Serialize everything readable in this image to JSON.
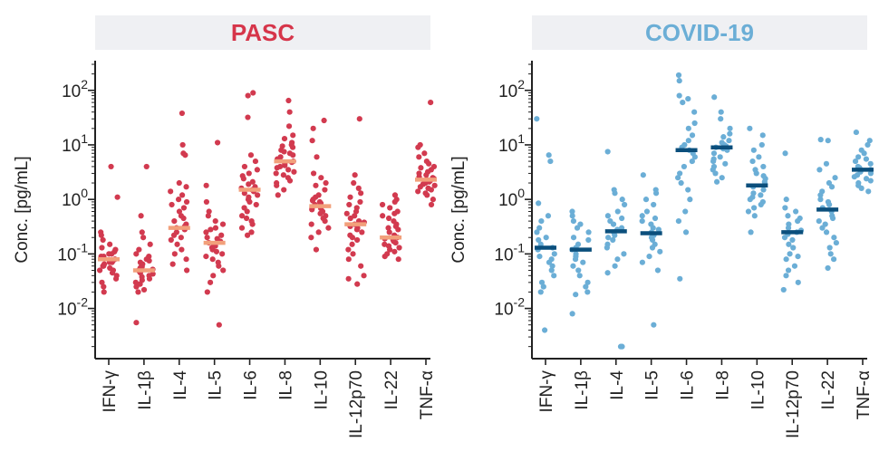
{
  "chart_data": [
    {
      "type": "scatter",
      "title": "PASC",
      "title_color": "#D6354A",
      "point_color": "#D23A4F",
      "median_color": "#F2A07B",
      "ylabel": "Conc.  [pg/mL]",
      "yscale": "log",
      "ylim": [
        0.0012,
        350
      ],
      "yticks": [
        0.01,
        0.1,
        1,
        10,
        100
      ],
      "ytick_labels": [
        {
          "base": "10",
          "exp": "-2"
        },
        {
          "base": "10",
          "exp": "-1"
        },
        {
          "base": "10",
          "exp": "0"
        },
        {
          "base": "10",
          "exp": "1"
        },
        {
          "base": "10",
          "exp": "2"
        }
      ],
      "categories": [
        "IFN-γ",
        "IL-1β",
        "IL-4",
        "IL-5",
        "IL-6",
        "IL-8",
        "IL-10",
        "IL-12p70",
        "IL-22",
        "TNF-α"
      ],
      "medians": [
        0.08,
        0.05,
        0.3,
        0.16,
        1.5,
        5.0,
        0.75,
        0.35,
        0.2,
        2.3
      ],
      "points": [
        [
          4.0,
          1.1,
          0.25,
          0.22,
          0.18,
          0.15,
          0.13,
          0.12,
          0.11,
          0.1,
          0.1,
          0.09,
          0.09,
          0.085,
          0.08,
          0.075,
          0.07,
          0.07,
          0.065,
          0.06,
          0.06,
          0.055,
          0.05,
          0.05,
          0.045,
          0.04,
          0.035,
          0.03,
          0.025,
          0.02
        ],
        [
          4.0,
          0.5,
          0.25,
          0.2,
          0.15,
          0.12,
          0.1,
          0.09,
          0.08,
          0.075,
          0.07,
          0.065,
          0.06,
          0.058,
          0.055,
          0.052,
          0.05,
          0.048,
          0.045,
          0.043,
          0.04,
          0.038,
          0.035,
          0.033,
          0.03,
          0.028,
          0.025,
          0.022,
          0.02,
          0.0055
        ],
        [
          38,
          10,
          7,
          6.5,
          2.0,
          1.7,
          1.4,
          1.2,
          1.0,
          0.9,
          0.8,
          0.7,
          0.6,
          0.5,
          0.45,
          0.4,
          0.35,
          0.32,
          0.3,
          0.28,
          0.25,
          0.22,
          0.2,
          0.18,
          0.15,
          0.12,
          0.1,
          0.08,
          0.065,
          0.05
        ],
        [
          11,
          1.8,
          0.9,
          0.6,
          0.5,
          0.4,
          0.35,
          0.3,
          0.28,
          0.25,
          0.22,
          0.2,
          0.19,
          0.17,
          0.16,
          0.15,
          0.14,
          0.13,
          0.12,
          0.11,
          0.1,
          0.09,
          0.08,
          0.07,
          0.06,
          0.05,
          0.04,
          0.03,
          0.02,
          0.005
        ],
        [
          90,
          80,
          32,
          6.5,
          5,
          4,
          3.5,
          3,
          2.7,
          2.4,
          2.1,
          1.9,
          1.7,
          1.6,
          1.5,
          1.4,
          1.3,
          1.2,
          1.1,
          1.0,
          0.9,
          0.8,
          0.7,
          0.6,
          0.5,
          0.45,
          0.4,
          0.35,
          0.3,
          0.25,
          0.22
        ],
        [
          65,
          40,
          22,
          15,
          13,
          11,
          10,
          9.5,
          9,
          8,
          7.5,
          7,
          6.5,
          6,
          5.5,
          5,
          4.8,
          4.5,
          4.2,
          4,
          3.8,
          3.5,
          3.2,
          3,
          2.8,
          2.5,
          2.2,
          2,
          1.8,
          1.5,
          1.2
        ],
        [
          28,
          20,
          12,
          6,
          3,
          2.5,
          2,
          1.8,
          1.5,
          1.2,
          1.1,
          1.0,
          0.95,
          0.9,
          0.85,
          0.8,
          0.75,
          0.7,
          0.68,
          0.65,
          0.6,
          0.55,
          0.5,
          0.45,
          0.4,
          0.35,
          0.3,
          0.25,
          0.2,
          0.12
        ],
        [
          30,
          2.8,
          2.0,
          1.6,
          1.3,
          1.1,
          0.9,
          0.8,
          0.7,
          0.6,
          0.55,
          0.5,
          0.45,
          0.4,
          0.38,
          0.35,
          0.32,
          0.3,
          0.28,
          0.25,
          0.22,
          0.2,
          0.18,
          0.15,
          0.12,
          0.1,
          0.08,
          0.06,
          0.04,
          0.035,
          0.028
        ],
        [
          1.2,
          1.0,
          0.9,
          0.8,
          0.7,
          0.6,
          0.55,
          0.5,
          0.45,
          0.4,
          0.35,
          0.32,
          0.3,
          0.28,
          0.25,
          0.22,
          0.2,
          0.19,
          0.18,
          0.17,
          0.16,
          0.15,
          0.14,
          0.13,
          0.12,
          0.11,
          0.1,
          0.09,
          0.08
        ],
        [
          60,
          10,
          9,
          7,
          6,
          5,
          4.5,
          4,
          3.8,
          3.5,
          3.2,
          3,
          2.8,
          2.6,
          2.5,
          2.4,
          2.3,
          2.2,
          2.1,
          2,
          1.9,
          1.8,
          1.7,
          1.6,
          1.5,
          1.4,
          1.3,
          1.2,
          1.0,
          0.8
        ]
      ]
    },
    {
      "type": "scatter",
      "title": "COVID-19",
      "title_color": "#6BAED6",
      "point_color": "#6BAED6",
      "median_color": "#0B4F7C",
      "ylabel": "Conc.  [pg/mL]",
      "yscale": "log",
      "ylim": [
        0.0012,
        350
      ],
      "yticks": [
        0.01,
        0.1,
        1,
        10,
        100
      ],
      "ytick_labels": [
        {
          "base": "10",
          "exp": "-2"
        },
        {
          "base": "10",
          "exp": "-1"
        },
        {
          "base": "10",
          "exp": "0"
        },
        {
          "base": "10",
          "exp": "1"
        },
        {
          "base": "10",
          "exp": "2"
        }
      ],
      "categories": [
        "IFN-γ",
        "IL-1β",
        "IL-4",
        "IL-5",
        "IL-6",
        "IL-8",
        "IL-10",
        "IL-12p70",
        "IL-22",
        "TNF-α"
      ],
      "medians": [
        0.13,
        0.12,
        0.26,
        0.24,
        8.0,
        9.0,
        1.8,
        0.25,
        0.65,
        3.5
      ],
      "points": [
        [
          30,
          6.5,
          5,
          0.85,
          0.5,
          0.4,
          0.3,
          0.25,
          0.2,
          0.18,
          0.15,
          0.13,
          0.12,
          0.1,
          0.09,
          0.08,
          0.07,
          0.06,
          0.05,
          0.04,
          0.03,
          0.025,
          0.02,
          0.004
        ],
        [
          0.6,
          0.5,
          0.4,
          0.35,
          0.3,
          0.25,
          0.2,
          0.18,
          0.15,
          0.13,
          0.12,
          0.1,
          0.09,
          0.08,
          0.07,
          0.06,
          0.05,
          0.04,
          0.03,
          0.025,
          0.02,
          0.018,
          0.008
        ],
        [
          7.5,
          1.5,
          1.3,
          1.0,
          0.8,
          0.6,
          0.5,
          0.45,
          0.4,
          0.35,
          0.3,
          0.28,
          0.25,
          0.22,
          0.2,
          0.18,
          0.15,
          0.13,
          0.1,
          0.08,
          0.06,
          0.045,
          0.002,
          0.002
        ],
        [
          2.8,
          1.5,
          1.3,
          1.0,
          0.8,
          0.6,
          0.5,
          0.45,
          0.4,
          0.35,
          0.3,
          0.28,
          0.25,
          0.22,
          0.2,
          0.18,
          0.15,
          0.13,
          0.11,
          0.09,
          0.07,
          0.05,
          0.005
        ],
        [
          190,
          150,
          80,
          70,
          60,
          40,
          25,
          20,
          15,
          12,
          10,
          9,
          8,
          7,
          6,
          5,
          4,
          3,
          2.5,
          2,
          1.5,
          1.0,
          0.6,
          0.4,
          0.25,
          0.035
        ],
        [
          75,
          40,
          30,
          20,
          16,
          14,
          12,
          11,
          10,
          9.5,
          9,
          8.5,
          8,
          7,
          6,
          5.5,
          5,
          4.5,
          4,
          3.5,
          3,
          2.5,
          2.1
        ],
        [
          20,
          15,
          10,
          8,
          6,
          5,
          4,
          3.5,
          3,
          2.7,
          2.4,
          2.1,
          1.9,
          1.7,
          1.5,
          1.3,
          1.2,
          1.1,
          1.0,
          0.9,
          0.8,
          0.7,
          0.6,
          0.5,
          0.25
        ],
        [
          7,
          1.0,
          0.7,
          0.6,
          0.5,
          0.45,
          0.4,
          0.35,
          0.3,
          0.27,
          0.25,
          0.23,
          0.2,
          0.18,
          0.15,
          0.13,
          0.1,
          0.09,
          0.08,
          0.06,
          0.05,
          0.04,
          0.03,
          0.022
        ],
        [
          12.5,
          12,
          4.5,
          3.5,
          2.5,
          2.0,
          1.7,
          1.4,
          1.2,
          1.0,
          0.9,
          0.8,
          0.7,
          0.6,
          0.5,
          0.45,
          0.4,
          0.35,
          0.3,
          0.25,
          0.2,
          0.16,
          0.13,
          0.1,
          0.08,
          0.055
        ],
        [
          17,
          12,
          10,
          8,
          7,
          6,
          5.5,
          5,
          4.5,
          4,
          3.8,
          3.5,
          3.2,
          3,
          2.8,
          2.6,
          2.4,
          2.2,
          2.0,
          1.8,
          1.6,
          1.4
        ]
      ]
    }
  ]
}
